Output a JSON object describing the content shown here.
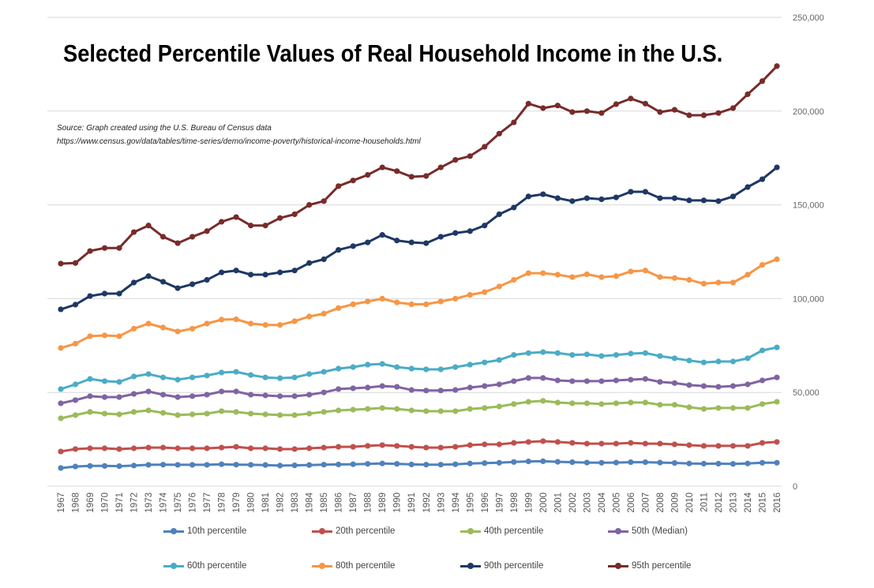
{
  "chart_data": {
    "type": "line",
    "title": "Selected Percentile Values of Real Household Income in the U.S.",
    "source_line1": "Source: Graph created using the U.S. Bureau of Census data",
    "source_line2": "https://www.census.gov/data/tables/time-series/demo/income-poverty/historical-income-households.html",
    "xlabel": "",
    "ylabel": "",
    "ylim": [
      0,
      250000
    ],
    "yticks": [
      0,
      50000,
      100000,
      150000,
      200000,
      250000
    ],
    "ytick_labels": [
      "0",
      "50,000",
      "100,000",
      "150,000",
      "200,000",
      "250,000"
    ],
    "y_axis_side": "right",
    "grid": true,
    "legend_position": "bottom",
    "x": [
      1967,
      1968,
      1969,
      1970,
      1971,
      1972,
      1973,
      1974,
      1975,
      1976,
      1977,
      1978,
      1979,
      1980,
      1981,
      1982,
      1983,
      1984,
      1985,
      1986,
      1987,
      1988,
      1989,
      1990,
      1991,
      1992,
      1993,
      1994,
      1995,
      1996,
      1997,
      1998,
      1999,
      2000,
      2001,
      2002,
      2003,
      2004,
      2005,
      2006,
      2007,
      2008,
      2009,
      2010,
      2011,
      2012,
      2013,
      2014,
      2015,
      2016
    ],
    "series": [
      {
        "name": "10th percentile",
        "color": "#4f81bd",
        "values": [
          9700,
          10500,
          10800,
          10800,
          10700,
          11000,
          11400,
          11500,
          11400,
          11400,
          11400,
          11700,
          11500,
          11400,
          11300,
          11000,
          11100,
          11300,
          11500,
          11600,
          11700,
          11900,
          12100,
          11900,
          11600,
          11500,
          11500,
          11700,
          12100,
          12300,
          12500,
          12900,
          13200,
          13300,
          13000,
          12800,
          12600,
          12500,
          12600,
          12800,
          12800,
          12600,
          12400,
          12100,
          12000,
          12000,
          11900,
          12100,
          12500,
          12500
        ]
      },
      {
        "name": "20th percentile",
        "color": "#c0504d",
        "values": [
          18500,
          19800,
          20200,
          20200,
          19800,
          20200,
          20600,
          20600,
          20200,
          20200,
          20200,
          20600,
          21000,
          20200,
          20200,
          19800,
          19800,
          20200,
          20600,
          21000,
          21000,
          21500,
          21900,
          21500,
          21000,
          20600,
          20600,
          21000,
          21900,
          22300,
          22300,
          23100,
          23600,
          24000,
          23600,
          23100,
          22700,
          22700,
          22700,
          23100,
          22700,
          22700,
          22300,
          21900,
          21500,
          21500,
          21500,
          21500,
          23100,
          23600
        ]
      },
      {
        "name": "40th percentile",
        "color": "#9bbb59",
        "values": [
          36200,
          37900,
          39600,
          38700,
          38300,
          39600,
          40400,
          39100,
          37900,
          38300,
          38700,
          40000,
          39600,
          38700,
          38300,
          37900,
          37900,
          38700,
          39600,
          40400,
          40800,
          41200,
          41700,
          41200,
          40400,
          40000,
          40000,
          40000,
          41200,
          41700,
          42500,
          43800,
          45000,
          45500,
          44600,
          44200,
          44200,
          43800,
          44200,
          44600,
          44600,
          43400,
          43400,
          42100,
          41200,
          41700,
          41700,
          41700,
          43800,
          45000
        ]
      },
      {
        "name": "50th (Median)",
        "color": "#8064a2",
        "values": [
          44200,
          45900,
          48000,
          47500,
          47500,
          49200,
          50500,
          48800,
          47500,
          48000,
          48800,
          50500,
          50500,
          48800,
          48400,
          48000,
          48000,
          48800,
          50000,
          51800,
          52200,
          52600,
          53400,
          53000,
          51300,
          51000,
          51000,
          51300,
          52600,
          53400,
          54300,
          56000,
          57700,
          57700,
          56400,
          56000,
          56000,
          56000,
          56400,
          56800,
          57200,
          55600,
          55000,
          53900,
          53400,
          53000,
          53400,
          54300,
          56400,
          58000
        ]
      },
      {
        "name": "60th percentile",
        "color": "#4bacc6",
        "values": [
          51800,
          54300,
          57200,
          56000,
          55600,
          58500,
          59800,
          58000,
          56800,
          58000,
          59000,
          60600,
          61000,
          59300,
          58000,
          57600,
          58000,
          59800,
          61000,
          62700,
          63500,
          64800,
          65200,
          63500,
          62700,
          62300,
          62300,
          63500,
          64800,
          66000,
          67300,
          70000,
          71000,
          71500,
          71000,
          70000,
          70300,
          69400,
          70000,
          70700,
          71000,
          69400,
          68200,
          67000,
          66000,
          66500,
          66500,
          68200,
          72400,
          74000
        ]
      },
      {
        "name": "80th percentile",
        "color": "#f79646",
        "values": [
          73700,
          76000,
          80000,
          80400,
          80000,
          84000,
          86700,
          84600,
          82500,
          84000,
          86700,
          88800,
          89000,
          86700,
          86000,
          86000,
          88000,
          90500,
          92000,
          95000,
          97000,
          98500,
          100000,
          98000,
          97000,
          97000,
          98500,
          100000,
          102000,
          103500,
          106500,
          110000,
          113600,
          113600,
          112800,
          111500,
          113000,
          111500,
          112000,
          114500,
          115000,
          111500,
          111000,
          110000,
          108000,
          108600,
          108600,
          112800,
          118000,
          121000
        ]
      },
      {
        "name": "90th percentile",
        "color": "#1f3864",
        "values": [
          94300,
          96800,
          101400,
          102700,
          102700,
          108600,
          112000,
          109000,
          105600,
          107700,
          110000,
          114000,
          115000,
          112800,
          112800,
          114000,
          115000,
          119000,
          121000,
          126000,
          128000,
          130000,
          134000,
          131000,
          130000,
          129600,
          133000,
          135000,
          136000,
          139000,
          145000,
          148600,
          154500,
          155700,
          153600,
          152000,
          153600,
          153000,
          154000,
          157000,
          157000,
          153600,
          153600,
          152400,
          152400,
          152000,
          154500,
          159500,
          163700,
          170000
        ]
      },
      {
        "name": "95th percentile",
        "color": "#772c2a",
        "values": [
          118700,
          119000,
          125400,
          127000,
          127000,
          135500,
          139000,
          133000,
          129600,
          133000,
          136000,
          141000,
          143500,
          139000,
          139000,
          143000,
          145000,
          150000,
          152000,
          160000,
          163000,
          166000,
          170000,
          168000,
          165000,
          165400,
          170000,
          174000,
          176000,
          181000,
          188000,
          194000,
          204000,
          201600,
          203000,
          199500,
          200000,
          199000,
          203700,
          206700,
          204000,
          199500,
          200700,
          197800,
          197800,
          199000,
          201600,
          209000,
          216000,
          224000
        ]
      }
    ]
  }
}
